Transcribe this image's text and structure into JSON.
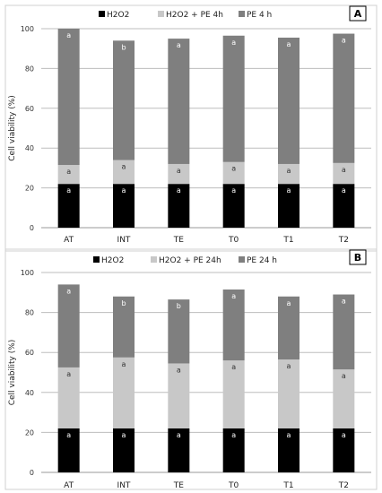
{
  "chart_data": [
    {
      "type": "bar",
      "stacked": true,
      "panel_label": "A",
      "ylabel": "Cell viability (%)",
      "ylim": [
        0,
        100
      ],
      "yticks": [
        0,
        20,
        40,
        60,
        80,
        100
      ],
      "grid": true,
      "legend_position": "top",
      "categories": [
        "AT",
        "INT",
        "TE",
        "T0",
        "T1",
        "T2"
      ],
      "series": [
        {
          "name": "H2O2",
          "color": "#000000",
          "values": [
            22,
            22,
            22,
            22,
            22,
            22
          ],
          "letters": [
            "a",
            "a",
            "a",
            "a",
            "a",
            "a"
          ]
        },
        {
          "name": "H2O2 + PE 4h",
          "color": "#c8c8c8",
          "values": [
            9.5,
            12,
            10,
            11,
            10,
            10.5
          ],
          "letters": [
            "a",
            "a",
            "a",
            "a",
            "a",
            "a"
          ]
        },
        {
          "name": "PE 4 h",
          "color": "#7f7f7f",
          "values": [
            68.5,
            60,
            63,
            63.5,
            63.5,
            65
          ],
          "letters": [
            "a",
            "b",
            "a",
            "a",
            "a",
            "a"
          ]
        }
      ]
    },
    {
      "type": "bar",
      "stacked": true,
      "panel_label": "B",
      "ylabel": "Cell viability (%)",
      "ylim": [
        0,
        100
      ],
      "yticks": [
        0,
        20,
        40,
        60,
        80,
        100
      ],
      "grid": true,
      "legend_position": "top",
      "categories": [
        "AT",
        "INT",
        "TE",
        "T0",
        "T1",
        "T2"
      ],
      "series": [
        {
          "name": "H2O2",
          "color": "#000000",
          "values": [
            22,
            22,
            22,
            22,
            22,
            22
          ],
          "letters": [
            "a",
            "a",
            "a",
            "a",
            "a",
            "a"
          ]
        },
        {
          "name": "H2O2 + PE 24h",
          "color": "#c8c8c8",
          "values": [
            30.5,
            35.5,
            32.5,
            34,
            34.5,
            29.5
          ],
          "letters": [
            "a",
            "a",
            "a",
            "a",
            "a",
            "a"
          ]
        },
        {
          "name": "PE 24 h",
          "color": "#7f7f7f",
          "values": [
            41.5,
            30.5,
            32,
            35.5,
            31.5,
            37.5
          ],
          "letters": [
            "a",
            "b",
            "b",
            "a",
            "a",
            "a"
          ]
        }
      ]
    }
  ]
}
